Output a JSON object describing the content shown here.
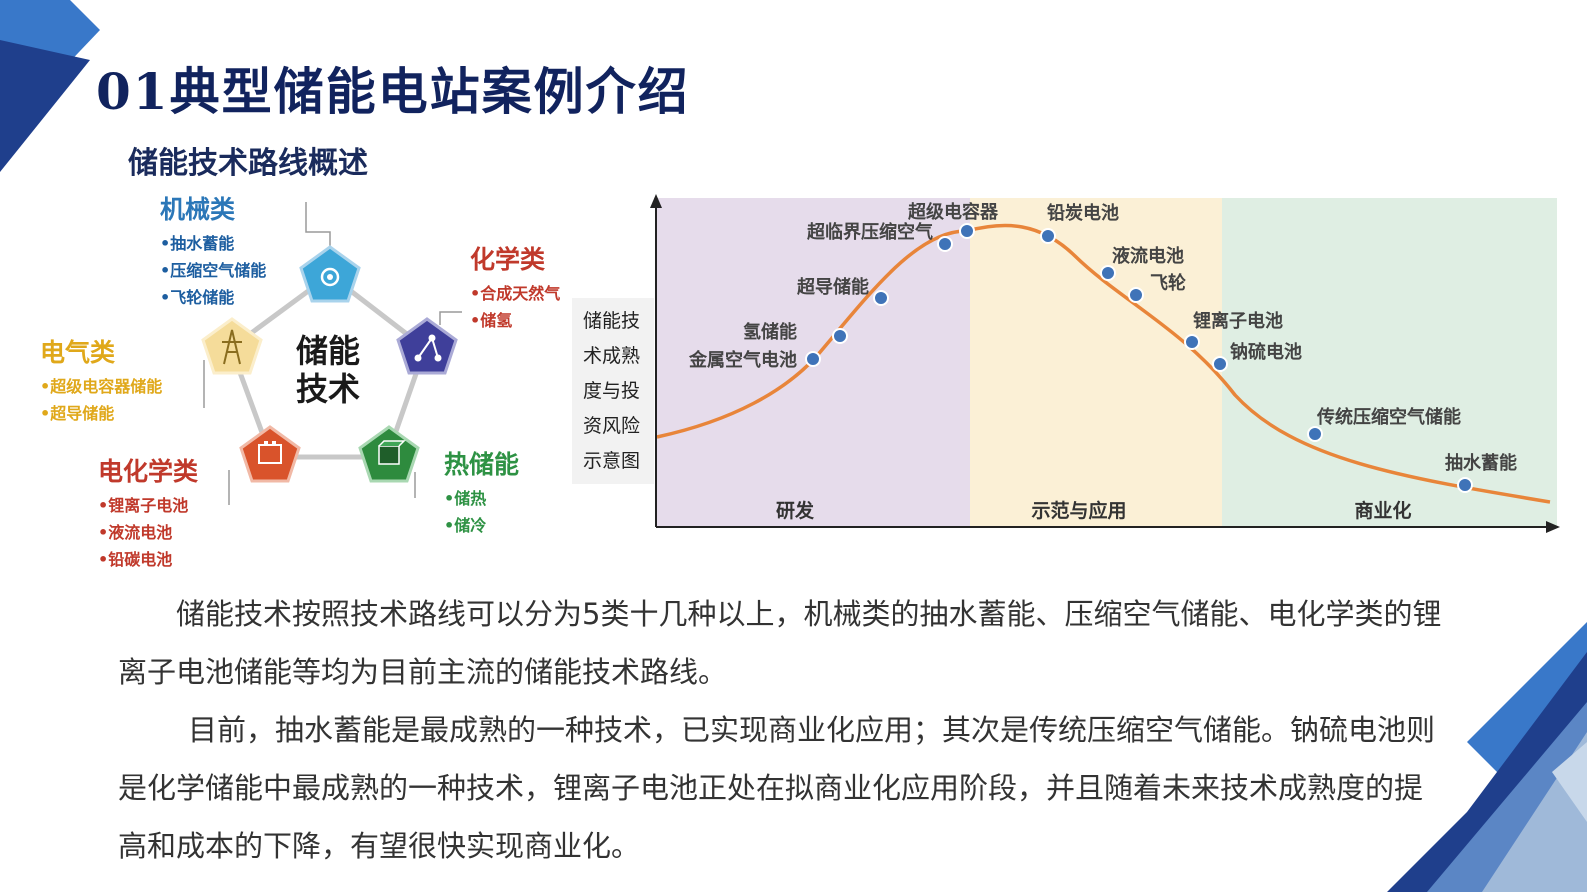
{
  "slide": {
    "title": "01典型储能电站案例介绍",
    "section_title": "储能技术路线概述"
  },
  "diagram": {
    "center": {
      "line1": "储能",
      "line2": "技术"
    },
    "categories": [
      {
        "title": "机械类",
        "items": [
          "抽水蓄能",
          "压缩空气储能",
          "飞轮储能"
        ],
        "color": "#2b77b8"
      },
      {
        "title": "化学类",
        "items": [
          "合成天然气",
          "储氢"
        ],
        "color": "#c0392b"
      },
      {
        "title": "电气类",
        "items": [
          "超级电容器储能",
          "超导储能"
        ],
        "color": "#e0a81a"
      },
      {
        "title": "电化学类",
        "items": [
          "锂离子电池",
          "液流电池",
          "铅碳电池"
        ],
        "color": "#c0392b"
      },
      {
        "title": "热储能",
        "items": [
          "储热",
          "储冷"
        ],
        "color": "#2e9244"
      }
    ]
  },
  "chart_caption": [
    "储能技",
    "术成熟",
    "度与投",
    "资风险",
    "示意图"
  ],
  "chart_data": {
    "type": "line",
    "y_axis_arrow": true,
    "stages": [
      {
        "label": "研发",
        "color": "#e6dceb"
      },
      {
        "label": "示范与应用",
        "color": "#fbf0d6"
      },
      {
        "label": "商业化",
        "color": "#dfeee3"
      }
    ],
    "points": [
      {
        "label": "金属空气电池",
        "stage": 0
      },
      {
        "label": "氢储能",
        "stage": 0
      },
      {
        "label": "超导储能",
        "stage": 0
      },
      {
        "label": "超临界压缩空气",
        "stage": 0
      },
      {
        "label": "超级电容器",
        "stage": 1
      },
      {
        "label": "铅炭电池",
        "stage": 1
      },
      {
        "label": "液流电池",
        "stage": 1
      },
      {
        "label": "飞轮",
        "stage": 1
      },
      {
        "label": "锂离子电池",
        "stage": 1
      },
      {
        "label": "钠硫电池",
        "stage": 1
      },
      {
        "label": "传统压缩空气储能",
        "stage": 2
      },
      {
        "label": "抽水蓄能",
        "stage": 2
      }
    ],
    "curve_color": "#e8853a",
    "marker_color": "#3f73b8"
  },
  "body": {
    "paragraphs": [
      "储能技术按照技术路线可以分为5类十几种以上，机械类的抽水蓄能、压缩空气储能、电化学类的锂离子电池储能等均为目前主流的储能技术路线。",
      "目前，抽水蓄能是最成熟的一种技术，已实现商业化应用；其次是传统压缩空气储能。钠硫电池则是化学储能中最成熟的一种技术，锂离子电池正处在拟商业化应用阶段，并且随着未来技术成熟度的提高和成本的下降，有望很快实现商业化。"
    ]
  },
  "colors": {
    "title": "#11235e",
    "corner_dark": "#1f3f8c",
    "corner_mid": "#3978c9",
    "body_text": "#333333"
  }
}
